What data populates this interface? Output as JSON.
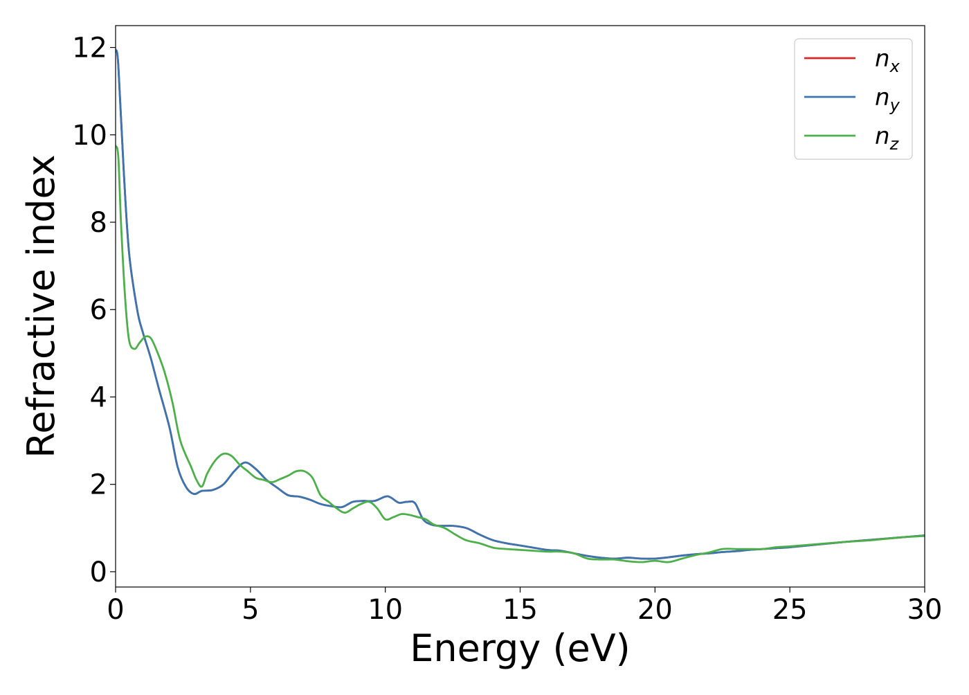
{
  "chart_data": {
    "type": "line",
    "title": "",
    "xlabel": "Energy (eV)",
    "ylabel": "Refractive index",
    "xlim": [
      0,
      30
    ],
    "ylim": [
      -0.35,
      12.5
    ],
    "x_ticks": [
      0,
      5,
      10,
      15,
      20,
      25,
      30
    ],
    "y_ticks": [
      0,
      2,
      4,
      6,
      8,
      10,
      12
    ],
    "grid": false,
    "legend_position": "top-right",
    "series": [
      {
        "name": "n",
        "subscript": "x",
        "color": "#d62728",
        "x": [
          0,
          0.1,
          0.3,
          0.5,
          0.8,
          1.0,
          1.3,
          1.6,
          2.0,
          2.3,
          2.6,
          2.9,
          3.2,
          3.6,
          4.0,
          4.4,
          4.8,
          5.2,
          5.6,
          6.0,
          6.4,
          6.8,
          7.2,
          7.6,
          8.0,
          8.4,
          8.8,
          9.2,
          9.6,
          10.0,
          10.2,
          10.5,
          10.8,
          11.1,
          11.4,
          11.7,
          12.0,
          12.5,
          13.0,
          13.5,
          14.0,
          14.5,
          15.0,
          15.5,
          16.0,
          16.5,
          17.0,
          17.5,
          18.0,
          18.5,
          19.0,
          19.5,
          20.0,
          20.5,
          21.0,
          21.5,
          22.0,
          22.5,
          23.0,
          23.5,
          24.0,
          24.5,
          25.0,
          26.0,
          27.0,
          28.0,
          29.0,
          30.0
        ],
        "y": [
          11.95,
          11.6,
          9.2,
          7.3,
          6.0,
          5.5,
          4.9,
          4.2,
          3.3,
          2.4,
          1.95,
          1.78,
          1.85,
          1.87,
          2.0,
          2.3,
          2.5,
          2.35,
          2.1,
          1.92,
          1.75,
          1.72,
          1.65,
          1.55,
          1.5,
          1.48,
          1.6,
          1.62,
          1.62,
          1.72,
          1.7,
          1.58,
          1.6,
          1.57,
          1.2,
          1.08,
          1.05,
          1.05,
          1.0,
          0.85,
          0.72,
          0.65,
          0.6,
          0.55,
          0.5,
          0.48,
          0.42,
          0.36,
          0.32,
          0.3,
          0.32,
          0.3,
          0.3,
          0.33,
          0.37,
          0.4,
          0.42,
          0.45,
          0.47,
          0.5,
          0.52,
          0.54,
          0.56,
          0.62,
          0.68,
          0.73,
          0.78,
          0.83
        ]
      },
      {
        "name": "n",
        "subscript": "y",
        "color": "#3a75b0",
        "x": [
          0,
          0.1,
          0.3,
          0.5,
          0.8,
          1.0,
          1.3,
          1.6,
          2.0,
          2.3,
          2.6,
          2.9,
          3.2,
          3.6,
          4.0,
          4.4,
          4.8,
          5.2,
          5.6,
          6.0,
          6.4,
          6.8,
          7.2,
          7.6,
          8.0,
          8.4,
          8.8,
          9.2,
          9.6,
          10.0,
          10.2,
          10.5,
          10.8,
          11.1,
          11.4,
          11.7,
          12.0,
          12.5,
          13.0,
          13.5,
          14.0,
          14.5,
          15.0,
          15.5,
          16.0,
          16.5,
          17.0,
          17.5,
          18.0,
          18.5,
          19.0,
          19.5,
          20.0,
          20.5,
          21.0,
          21.5,
          22.0,
          22.5,
          23.0,
          23.5,
          24.0,
          24.5,
          25.0,
          26.0,
          27.0,
          28.0,
          29.0,
          30.0
        ],
        "y": [
          11.95,
          11.6,
          9.2,
          7.3,
          6.0,
          5.5,
          4.9,
          4.2,
          3.3,
          2.4,
          1.95,
          1.78,
          1.85,
          1.87,
          2.0,
          2.3,
          2.5,
          2.35,
          2.1,
          1.92,
          1.75,
          1.72,
          1.65,
          1.55,
          1.5,
          1.48,
          1.6,
          1.62,
          1.62,
          1.72,
          1.7,
          1.58,
          1.6,
          1.57,
          1.2,
          1.08,
          1.05,
          1.05,
          1.0,
          0.85,
          0.72,
          0.65,
          0.6,
          0.55,
          0.5,
          0.48,
          0.42,
          0.36,
          0.32,
          0.3,
          0.32,
          0.3,
          0.3,
          0.33,
          0.37,
          0.4,
          0.42,
          0.45,
          0.47,
          0.5,
          0.52,
          0.54,
          0.56,
          0.62,
          0.68,
          0.73,
          0.78,
          0.83
        ]
      },
      {
        "name": "n",
        "subscript": "z",
        "color": "#4daf4a",
        "x": [
          0,
          0.1,
          0.2,
          0.35,
          0.5,
          0.7,
          0.9,
          1.1,
          1.3,
          1.5,
          1.8,
          2.1,
          2.4,
          2.8,
          3.0,
          3.2,
          3.4,
          3.7,
          4.0,
          4.3,
          4.6,
          4.9,
          5.2,
          5.5,
          5.8,
          6.1,
          6.4,
          6.7,
          7.0,
          7.3,
          7.6,
          7.9,
          8.2,
          8.5,
          8.8,
          9.1,
          9.4,
          9.7,
          10.0,
          10.3,
          10.6,
          10.9,
          11.2,
          11.5,
          11.8,
          12.2,
          12.6,
          13.0,
          13.5,
          14.0,
          14.5,
          15.0,
          15.5,
          16.0,
          16.5,
          17.0,
          17.5,
          18.0,
          18.5,
          19.0,
          19.5,
          20.0,
          20.5,
          21.0,
          21.5,
          22.0,
          22.5,
          23.0,
          23.5,
          24.0,
          24.5,
          25.0,
          26.0,
          27.0,
          28.0,
          29.0,
          30.0
        ],
        "y": [
          9.75,
          9.5,
          8.0,
          6.3,
          5.3,
          5.1,
          5.25,
          5.38,
          5.35,
          5.1,
          4.6,
          3.9,
          3.0,
          2.4,
          2.1,
          1.95,
          2.25,
          2.55,
          2.7,
          2.65,
          2.45,
          2.3,
          2.15,
          2.1,
          2.05,
          2.12,
          2.2,
          2.3,
          2.3,
          2.15,
          1.75,
          1.6,
          1.45,
          1.35,
          1.45,
          1.55,
          1.6,
          1.45,
          1.2,
          1.25,
          1.32,
          1.3,
          1.25,
          1.2,
          1.08,
          1.0,
          0.85,
          0.72,
          0.65,
          0.55,
          0.52,
          0.5,
          0.48,
          0.46,
          0.46,
          0.42,
          0.3,
          0.28,
          0.28,
          0.24,
          0.22,
          0.25,
          0.22,
          0.3,
          0.38,
          0.44,
          0.52,
          0.52,
          0.52,
          0.52,
          0.56,
          0.58,
          0.63,
          0.68,
          0.72,
          0.78,
          0.82
        ]
      }
    ]
  }
}
